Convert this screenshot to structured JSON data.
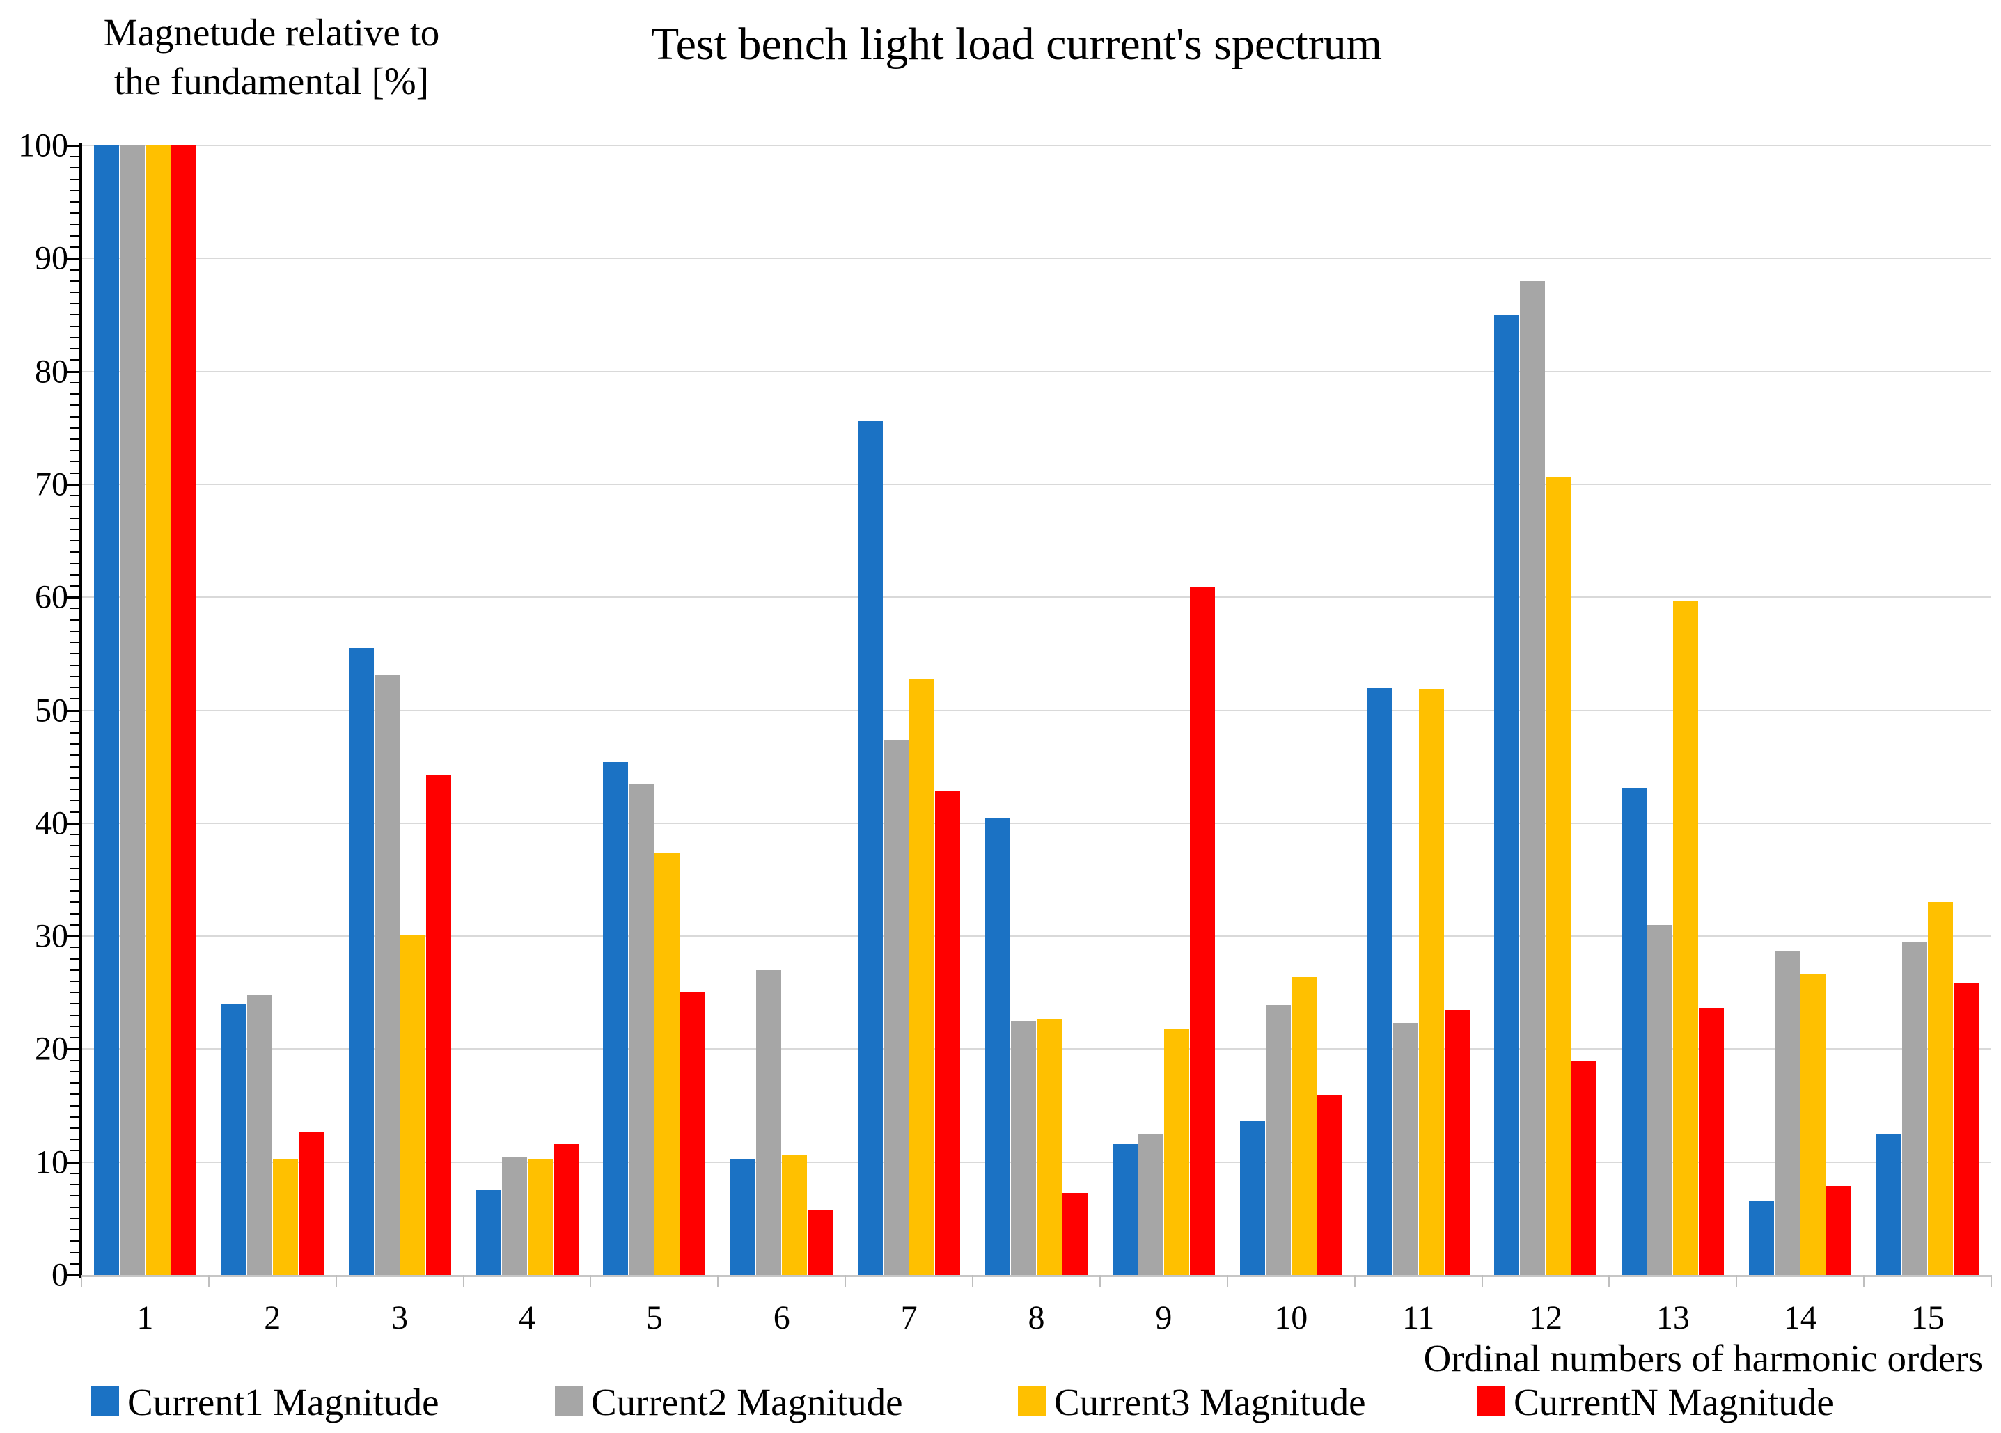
{
  "title": "Test bench light load current's spectrum",
  "y_axis": {
    "title_line1": "Magnetude relative to",
    "title_line2": "the fundamental [%]",
    "tick_labels": [
      "0",
      "10",
      "20",
      "30",
      "40",
      "50",
      "60",
      "70",
      "80",
      "90",
      "100"
    ]
  },
  "x_axis": {
    "title": "Ordinal numbers of harmonic orders"
  },
  "colors": {
    "series_blue": "#1b72c4",
    "series_gray": "#a6a6a6",
    "series_yellow": "#ffc000",
    "series_red": "#ff0000",
    "gridline": "#d9d9d9",
    "value_axis": "#000000",
    "category_axis": "#c6c6c6"
  },
  "chart_data": {
    "type": "bar",
    "title": "Test bench light load current's spectrum",
    "xlabel": "Ordinal numbers of harmonic orders",
    "ylabel": "Magnetude relative to the fundamental [%]",
    "ylim": [
      0,
      100
    ],
    "y_major_step": 10,
    "y_minor_step": 1,
    "grid": true,
    "legend_position": "bottom",
    "categories": [
      "1",
      "2",
      "3",
      "4",
      "5",
      "6",
      "7",
      "8",
      "9",
      "10",
      "11",
      "12",
      "13",
      "14",
      "15"
    ],
    "series": [
      {
        "name": "Current1 Magnitude",
        "color": "#1b72c4",
        "values": [
          100,
          24.0,
          55.5,
          7.5,
          45.4,
          10.2,
          75.6,
          40.5,
          11.6,
          13.7,
          52.0,
          85.0,
          43.1,
          6.6,
          12.5
        ]
      },
      {
        "name": "Current2 Magnitude",
        "color": "#a6a6a6",
        "values": [
          100,
          24.8,
          53.1,
          10.5,
          43.5,
          27.0,
          47.4,
          22.5,
          12.5,
          23.9,
          22.3,
          88.0,
          31.0,
          28.7,
          29.5
        ]
      },
      {
        "name": "Current3 Magnitude",
        "color": "#ffc000",
        "values": [
          100,
          10.3,
          30.1,
          10.2,
          37.4,
          10.6,
          52.8,
          22.7,
          21.8,
          26.4,
          51.9,
          70.7,
          59.7,
          26.7,
          33.0
        ]
      },
      {
        "name": "CurrentN Magnitude",
        "color": "#ff0000",
        "values": [
          100,
          12.7,
          44.3,
          11.6,
          25.0,
          5.7,
          42.8,
          7.3,
          60.9,
          15.9,
          23.5,
          18.9,
          23.6,
          7.9,
          25.8
        ]
      }
    ]
  },
  "legend": [
    {
      "label": "Current1 Magnitude",
      "color": "#1b72c4"
    },
    {
      "label": "Current2 Magnitude",
      "color": "#a6a6a6"
    },
    {
      "label": "Current3 Magnitude",
      "color": "#ffc000"
    },
    {
      "label": "CurrentN Magnitude",
      "color": "#ff0000"
    }
  ]
}
